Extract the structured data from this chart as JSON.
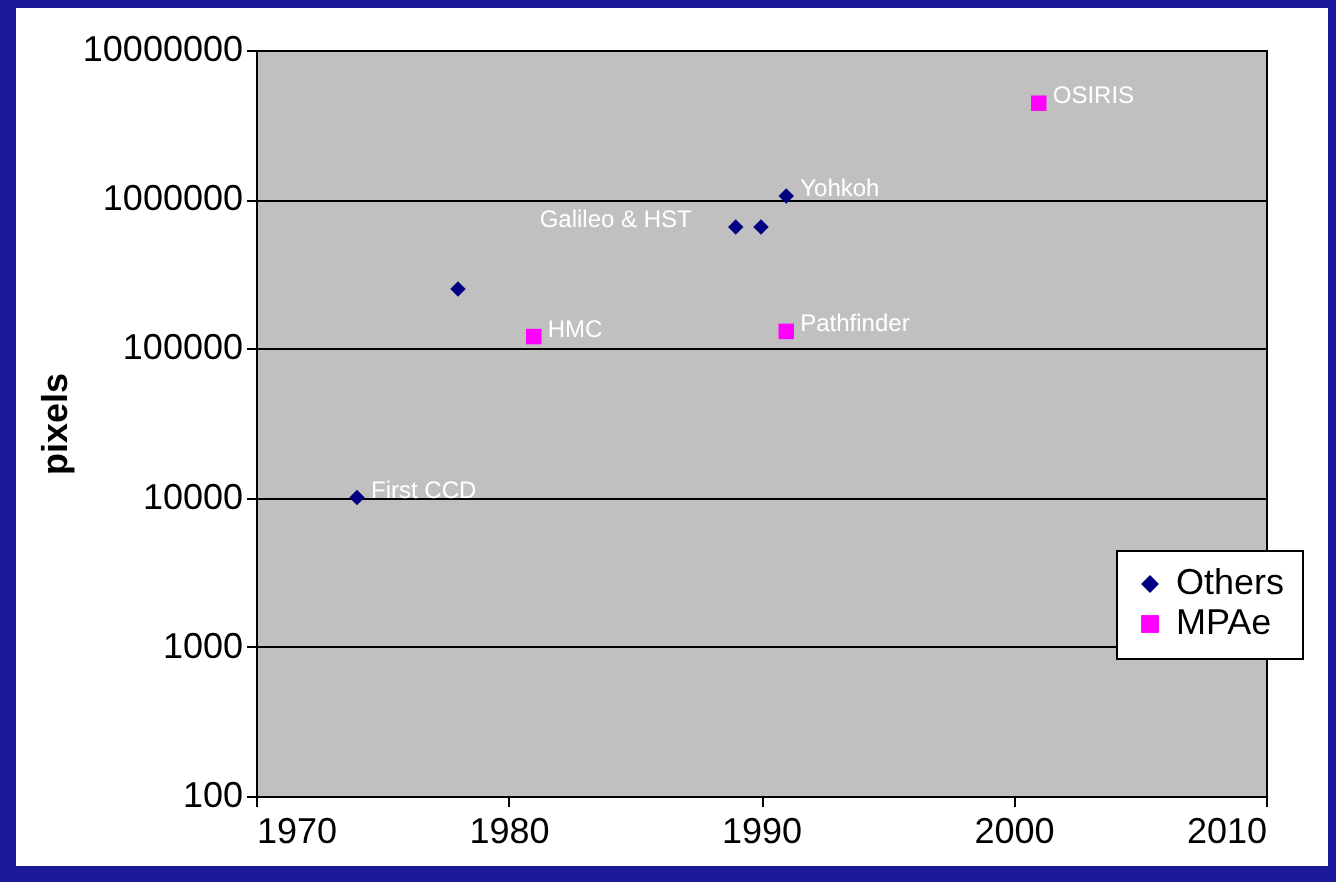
{
  "chart_data": {
    "type": "scatter",
    "ylabel": "pixels",
    "series": [
      {
        "name": "Others",
        "color": "#000080",
        "marker": "diamond",
        "x": [
          1974,
          1978,
          1989,
          1990,
          1991
        ],
        "values": [
          10000,
          250000,
          650000,
          650000,
          1050000
        ]
      },
      {
        "name": "MPAe",
        "color": "#ff00ff",
        "marker": "square",
        "x": [
          1981,
          1991,
          2001
        ],
        "values": [
          120000,
          130000,
          4400000
        ]
      }
    ],
    "annotations": [
      {
        "text": "First CCD",
        "x": 1974,
        "y": 10000
      },
      {
        "text": "Galileo & HST",
        "x": 1989,
        "y": 650000
      },
      {
        "text": "Yohkoh",
        "x": 1991,
        "y": 1050000
      },
      {
        "text": "HMC",
        "x": 1981,
        "y": 120000
      },
      {
        "text": "Pathfinder",
        "x": 1991,
        "y": 130000
      },
      {
        "text": "OSIRIS",
        "x": 2001,
        "y": 4400000
      }
    ],
    "xlim": [
      1970,
      2010
    ],
    "xticks": [
      1970,
      1980,
      1990,
      2000,
      2010
    ],
    "ylim": [
      100,
      10000000
    ],
    "yticks": [
      100,
      1000,
      10000,
      100000,
      1000000,
      10000000
    ],
    "log": "y",
    "grid": "y",
    "legend": "bottom right"
  }
}
